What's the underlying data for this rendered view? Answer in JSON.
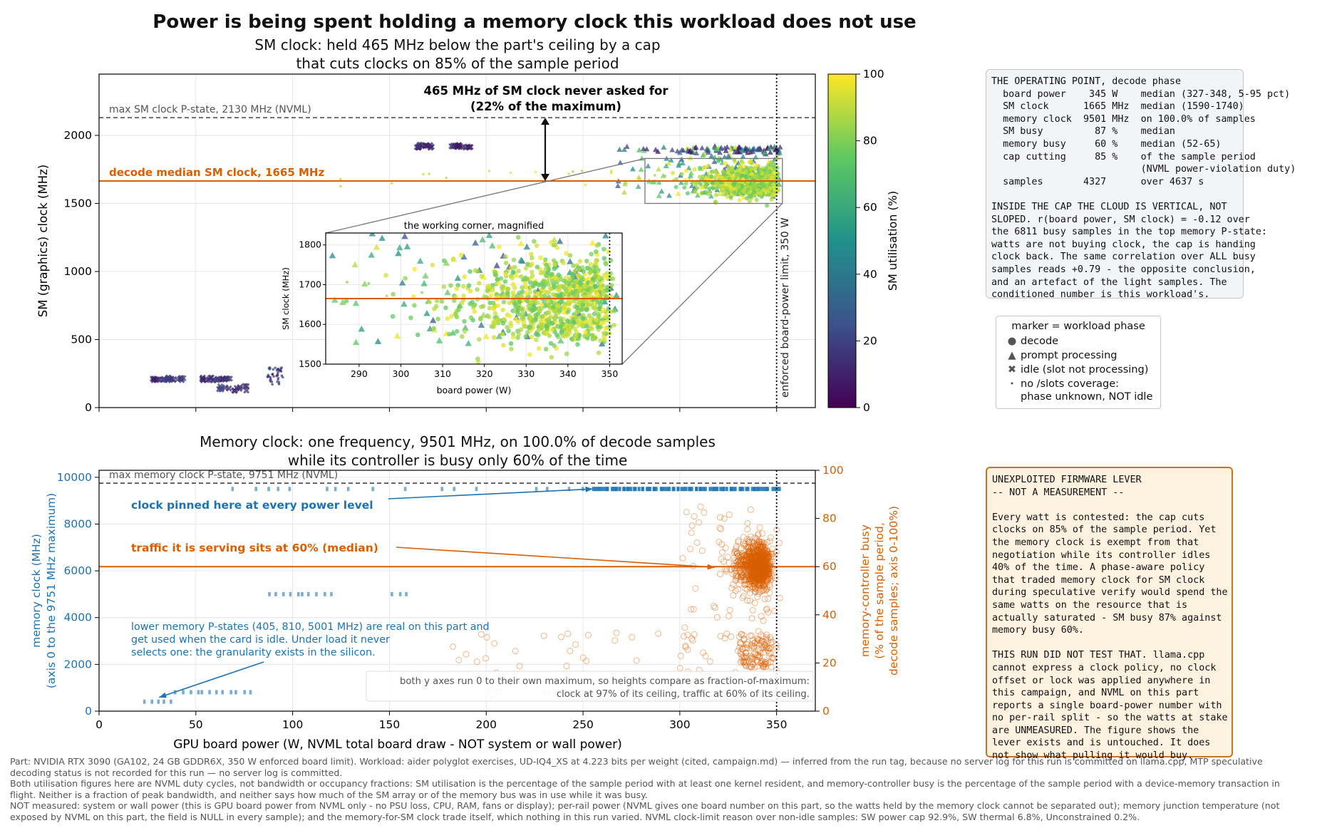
{
  "figure_title": "Power is being spent holding a memory clock this workload does not use",
  "top_panel": {
    "subtitle_line1": "SM clock: held 465 MHz below the part's ceiling by a cap",
    "subtitle_line2": "that cuts clocks on 85% of the sample period",
    "ylabel": "SM (graphics) clock (MHz)",
    "ref_max_label": "max SM clock P-state, 2130 MHz (NVML)",
    "ref_median_label": "decode median SM clock, 1665 MHz",
    "gap_label_line1": "465 MHz of SM clock never asked for",
    "gap_label_line2": "(22% of the maximum)",
    "limit_label": "enforced board-power limit, 350 W",
    "colorbar_label": "SM utilisation (%)",
    "inset_title": "the working corner, magnified",
    "inset_xlabel": "board power (W)",
    "inset_ylabel": "SM clock (MHz)"
  },
  "bottom_panel": {
    "subtitle_line1": "Memory clock: one frequency, 9501 MHz, on 100.0% of decode samples",
    "subtitle_line2": "while its controller is busy only 60% of the time",
    "xlabel": "GPU board power (W, NVML total board draw - NOT system or wall power)",
    "ylabel_left_line1": "memory clock (MHz)",
    "ylabel_left_line2": "(axis 0 to the 9751 MHz maximum)",
    "ylabel_right_line1": "memory-controller busy",
    "ylabel_right_line2": "(% of the sample period,",
    "ylabel_right_line3": "decode samples; axis 0-100%)",
    "ref_max_label": "max memory clock P-state, 9751 MHz (NVML)",
    "annotation_pinned": "clock pinned here at every power level",
    "annotation_traffic": "traffic it is serving sits at 60% (median)",
    "annotation_lower_line1": "lower memory P-states (405, 810, 5001 MHz) are real on this part and",
    "annotation_lower_line2": "get used when the card is idle. Under load it never",
    "annotation_lower_line3": "selects one: the granularity exists in the silicon.",
    "note_line1": "both y axes run 0 to their own maximum, so heights compare as fraction-of-maximum:",
    "note_line2": "clock at 97% of its ceiling, traffic at 60% of its ceiling."
  },
  "operating_box": {
    "lines": [
      "THE OPERATING POINT, decode phase",
      "  board power    345 W    median (327-348, 5-95 pct)",
      "  SM clock      1665 MHz  median (1590-1740)",
      "  memory clock  9501 MHz  on 100.0% of samples",
      "  SM busy         87 %    median",
      "  memory busy     60 %    median (52-65)",
      "  cap cutting     85 %    of the sample period",
      "                          (NVML power-violation duty)",
      "  samples       4327      over 4637 s",
      "",
      "INSIDE THE CAP THE CLOUD IS VERTICAL, NOT",
      "SLOPED. r(board power, SM clock) = -0.12 over",
      "the 6811 busy samples in the top memory P-state:",
      "watts are not buying clock, the cap is handing",
      "clock back. The same correlation over ALL busy",
      "samples reads +0.79 - the opposite conclusion,",
      "and an artefact of the light samples. The",
      "conditioned number is this workload's."
    ]
  },
  "legend": {
    "title": "marker = workload phase",
    "items": [
      {
        "marker": "●",
        "label": "decode"
      },
      {
        "marker": "▲",
        "label": "prompt processing"
      },
      {
        "marker": "✖",
        "label": "idle (slot not processing)"
      },
      {
        "marker": "•",
        "label": "no /slots coverage:\nphase unknown, NOT idle"
      }
    ]
  },
  "lever_box": {
    "lines": [
      "UNEXPLOITED FIRMWARE LEVER",
      "-- NOT A MEASUREMENT --",
      "",
      "Every watt is contested: the cap cuts",
      "clocks on 85% of the sample period. Yet",
      "the memory clock is exempt from that",
      "negotiation while its controller idles",
      "40% of the time. A phase-aware policy",
      "that traded memory clock for SM clock",
      "during speculative verify would spend the",
      "same watts on the resource that is",
      "actually saturated - SM busy 87% against",
      "memory busy 60%.",
      "",
      "THIS RUN DID NOT TEST THAT. llama.cpp",
      "cannot express a clock policy, no clock",
      "offset or lock was applied anywhere in",
      "this campaign, and NVML on this part",
      "reports a single board-power number with",
      "no per-rail split - so the watts at stake",
      "are UNMEASURED. The figure shows the",
      "lever exists and is untouched. It does",
      "not show what pulling it would buy."
    ]
  },
  "footnotes": [
    "Part: NVIDIA RTX 3090 (GA102, 24 GB GDDR6X, 350 W enforced board limit).   Workload: aider polyglot exercises, UD-IQ4_XS at 4.223 bits per weight (cited, campaign.md) — inferred from the run tag, because no server log for this run is committed on llama.cpp, MTP speculative",
    "decoding status is not recorded for this run — no server log is committed.",
    "Both utilisation figures here are NVML duty cycles, not bandwidth or occupancy fractions: SM utilisation is the percentage of the sample period with at least one kernel resident, and memory-controller busy is the percentage of the sample period with a device-memory transaction in",
    "flight. Neither is a fraction of peak bandwidth, and neither says how much of the SM array or of the memory bus was in use while it was busy.",
    "NOT measured: system or wall power (this is GPU board power from NVML only - no PSU loss, CPU, RAM, fans or display); per-rail power (NVML gives one board number on this part, so the watts held by the memory clock cannot be separated out); memory junction temperature (not",
    "exposed by NVML on this part, the field is NULL in every sample); and the memory-for-SM clock trade itself, which nothing in this run varied.  NVML clock-limit reason over non-idle samples: SW power cap 92.9%, SW thermal 6.8%, Unconstrained 0.2%."
  ],
  "colors": {
    "median_orange": "#d95f02",
    "mem_blue": "#1f77b4",
    "mem_text_blue": "#1a74b4",
    "ref_gray": "#444444"
  },
  "chart_data": [
    {
      "type": "scatter",
      "title": "SM clock: held 465 MHz below the part's ceiling by a cap that cuts clocks on 85% of the sample period",
      "xlabel": "",
      "ylabel": "SM (graphics) clock (MHz)",
      "xlim": [
        0,
        370
      ],
      "ylim": [
        0,
        2450
      ],
      "x_ticks": [
        0,
        50,
        100,
        150,
        200,
        250,
        300,
        350
      ],
      "y_ticks": [
        0,
        500,
        1000,
        1500,
        2000
      ],
      "grid": true,
      "color_scale": {
        "name": "viridis",
        "label": "SM utilisation (%)",
        "range": [
          0,
          100
        ],
        "ticks": [
          0,
          20,
          40,
          60,
          80,
          100
        ]
      },
      "reference_lines": [
        {
          "axis": "y",
          "value": 2130,
          "style": "dashed",
          "label": "max SM clock P-state, 2130 MHz (NVML)"
        },
        {
          "axis": "y",
          "value": 1665,
          "style": "solid",
          "label": "decode median SM clock, 1665 MHz"
        },
        {
          "axis": "x",
          "value": 350,
          "style": "dotted",
          "label": "enforced board-power limit, 350 W"
        }
      ],
      "annotation_arrow": {
        "x": 345,
        "y_from": 1665,
        "y_to": 2130
      },
      "clusters": [
        {
          "phase": "idle",
          "marker": "x",
          "x_range": [
            26,
            44
          ],
          "y": 210,
          "util_range": [
            5,
            25
          ]
        },
        {
          "phase": "idle",
          "marker": "x",
          "x_range": [
            53,
            68
          ],
          "y": 210,
          "util_range": [
            5,
            25
          ]
        },
        {
          "phase": "unknown",
          "marker": "dot",
          "x_range": [
            87,
            95
          ],
          "y_range": [
            170,
            300
          ],
          "util_range": [
            5,
            30
          ]
        },
        {
          "phase": "idle",
          "marker": "x",
          "x_range": [
            164,
            172
          ],
          "y": 1920,
          "util_range": [
            5,
            20
          ]
        },
        {
          "phase": "idle",
          "marker": "x",
          "x_range": [
            182,
            192
          ],
          "y": 1920,
          "util_range": [
            5,
            20
          ]
        },
        {
          "phase": "prompt",
          "marker": "triangle",
          "x_range": [
            255,
            352
          ],
          "y_range": [
            1550,
            1920
          ],
          "util_range": [
            20,
            100
          ]
        },
        {
          "phase": "decode",
          "marker": "circle",
          "x_range": [
            278,
            352
          ],
          "y_range": [
            1520,
            1800
          ],
          "util_range": [
            70,
            100
          ]
        }
      ],
      "inset": {
        "title": "the working corner, magnified",
        "xlim": [
          282,
          353
        ],
        "ylim": [
          1500,
          1830
        ],
        "x_ticks": [
          290,
          300,
          310,
          320,
          330,
          340,
          350
        ],
        "y_ticks": [
          1500,
          1600,
          1700,
          1800
        ],
        "xlabel": "board power (W)",
        "ylabel": "SM clock (MHz)"
      }
    },
    {
      "type": "scatter",
      "title": "Memory clock: one frequency, 9501 MHz, on 100.0% of decode samples while its controller is busy only 60% of the time",
      "xlabel": "GPU board power (W, NVML total board draw - NOT system or wall power)",
      "ylabel_left": "memory clock (MHz)",
      "ylabel_right": "memory-controller busy (% of the sample period, decode samples; axis 0-100%)",
      "xlim": [
        0,
        370
      ],
      "ylim_left": [
        0,
        10300
      ],
      "ylim_right": [
        0,
        100
      ],
      "x_ticks": [
        0,
        50,
        100,
        150,
        200,
        250,
        300,
        350
      ],
      "y_ticks_left": [
        0,
        2000,
        4000,
        6000,
        8000,
        10000
      ],
      "y_ticks_right": [
        0,
        20,
        40,
        60,
        80,
        100
      ],
      "grid": true,
      "reference_lines": [
        {
          "axis": "y_left",
          "value": 9751,
          "style": "dashed",
          "label": "max memory clock P-state, 9751 MHz (NVML)"
        },
        {
          "axis": "y_right",
          "value": 60,
          "style": "solid",
          "label": "traffic it is serving sits at 60% (median)"
        },
        {
          "axis": "x",
          "value": 350,
          "style": "dotted"
        }
      ],
      "memory_clock_series": [
        {
          "y": 9501,
          "x_range": [
            60,
            352
          ],
          "dense_from": 250
        },
        {
          "y": 5001,
          "x_range": [
            88,
            122
          ]
        },
        {
          "y": 5001,
          "x_range": [
            152,
            160
          ]
        },
        {
          "y": 810,
          "x_range": [
            40,
            80
          ]
        },
        {
          "y": 405,
          "x_range": [
            24,
            40
          ]
        }
      ],
      "memory_busy_cloud": {
        "x_range": [
          300,
          352
        ],
        "center": [
          345,
          60
        ],
        "y_range": [
          5,
          85
        ]
      }
    }
  ]
}
